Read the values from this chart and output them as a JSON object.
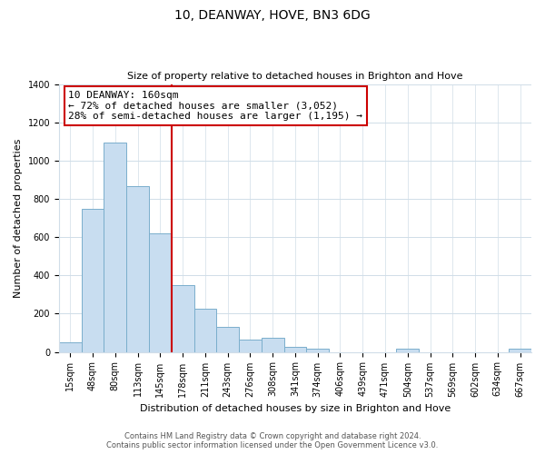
{
  "title": "10, DEANWAY, HOVE, BN3 6DG",
  "subtitle": "Size of property relative to detached houses in Brighton and Hove",
  "xlabel": "Distribution of detached houses by size in Brighton and Hove",
  "ylabel": "Number of detached properties",
  "bar_labels": [
    "15sqm",
    "48sqm",
    "80sqm",
    "113sqm",
    "145sqm",
    "178sqm",
    "211sqm",
    "243sqm",
    "276sqm",
    "308sqm",
    "341sqm",
    "374sqm",
    "406sqm",
    "439sqm",
    "471sqm",
    "504sqm",
    "537sqm",
    "569sqm",
    "602sqm",
    "634sqm",
    "667sqm"
  ],
  "bar_values": [
    52,
    750,
    1095,
    868,
    620,
    347,
    228,
    132,
    65,
    72,
    25,
    18,
    0,
    0,
    0,
    15,
    0,
    0,
    0,
    0,
    18
  ],
  "bar_color": "#c8ddf0",
  "bar_edge_color": "#7aaecc",
  "property_line_x": 4.5,
  "annotation_line1": "10 DEANWAY: 160sqm",
  "annotation_line2": "← 72% of detached houses are smaller (3,052)",
  "annotation_line3": "28% of semi-detached houses are larger (1,195) →",
  "annotation_box_color": "#ffffff",
  "annotation_box_edge_color": "#cc0000",
  "vline_color": "#cc0000",
  "ylim": [
    0,
    1400
  ],
  "yticks": [
    0,
    200,
    400,
    600,
    800,
    1000,
    1200,
    1400
  ],
  "footer_line1": "Contains HM Land Registry data © Crown copyright and database right 2024.",
  "footer_line2": "Contains public sector information licensed under the Open Government Licence v3.0.",
  "background_color": "#ffffff",
  "grid_color": "#d0dde8",
  "title_fontsize": 10,
  "subtitle_fontsize": 8,
  "ylabel_fontsize": 8,
  "xlabel_fontsize": 8,
  "tick_fontsize": 7,
  "annotation_fontsize": 8,
  "footer_fontsize": 6
}
